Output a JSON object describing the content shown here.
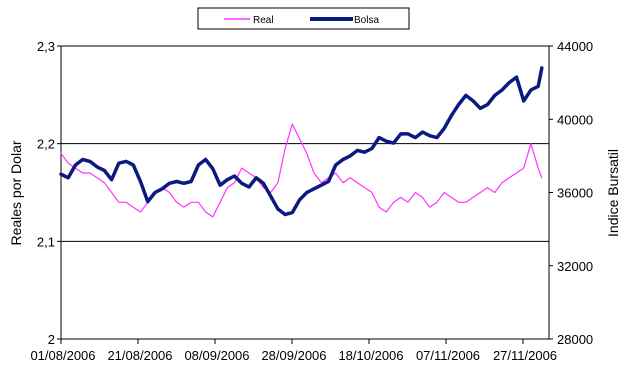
{
  "chart_data": {
    "type": "line",
    "title": "",
    "xlabel": "",
    "ylabel_left": "Reales por Dolar",
    "ylabel_right": "Indice Bursatil",
    "x_tick_labels": [
      "01/08/2006",
      "21/08/2006",
      "08/09/2006",
      "28/09/2006",
      "18/10/2006",
      "07/11/2006",
      "27/11/2006"
    ],
    "y_left": {
      "lim": [
        2.0,
        2.3
      ],
      "ticks": [
        "2",
        "2,1",
        "2,2",
        "2,3"
      ]
    },
    "y_right": {
      "lim": [
        28000,
        44000
      ],
      "ticks": [
        "28000",
        "32000",
        "36000",
        "40000",
        "44000"
      ]
    },
    "grid": "horizontal major lines",
    "legend_position": "top-center",
    "x_range_days": [
      0,
      135
    ],
    "series": [
      {
        "name": "Real",
        "axis": "left",
        "color": "#ff33ff",
        "x": [
          0,
          2,
          4,
          6,
          8,
          10,
          12,
          14,
          16,
          18,
          20,
          22,
          24,
          26,
          28,
          30,
          32,
          34,
          36,
          38,
          40,
          42,
          44,
          46,
          48,
          50,
          52,
          54,
          56,
          58,
          60,
          62,
          64,
          66,
          68,
          70,
          72,
          74,
          76,
          78,
          80,
          82,
          84,
          86,
          88,
          90,
          92,
          94,
          96,
          98,
          100,
          102,
          104,
          106,
          108,
          110,
          112,
          114,
          116,
          118,
          120,
          122,
          124,
          126,
          128,
          130,
          132,
          133
        ],
        "values": [
          2.19,
          2.18,
          2.175,
          2.17,
          2.17,
          2.165,
          2.16,
          2.15,
          2.14,
          2.14,
          2.135,
          2.13,
          2.14,
          2.15,
          2.155,
          2.15,
          2.14,
          2.135,
          2.14,
          2.14,
          2.13,
          2.125,
          2.14,
          2.155,
          2.16,
          2.175,
          2.17,
          2.165,
          2.155,
          2.15,
          2.16,
          2.195,
          2.22,
          2.205,
          2.19,
          2.17,
          2.16,
          2.165,
          2.17,
          2.16,
          2.165,
          2.16,
          2.155,
          2.15,
          2.135,
          2.13,
          2.14,
          2.145,
          2.14,
          2.15,
          2.145,
          2.135,
          2.14,
          2.15,
          2.145,
          2.14,
          2.14,
          2.145,
          2.15,
          2.155,
          2.15,
          2.16,
          2.165,
          2.17,
          2.175,
          2.2,
          2.175,
          2.165
        ]
      },
      {
        "name": "Bolsa",
        "axis": "right",
        "color": "#0a1a80",
        "x": [
          0,
          2,
          4,
          6,
          8,
          10,
          12,
          14,
          16,
          18,
          20,
          22,
          24,
          26,
          28,
          30,
          32,
          34,
          36,
          38,
          40,
          42,
          44,
          46,
          48,
          50,
          52,
          54,
          56,
          58,
          60,
          62,
          64,
          66,
          68,
          70,
          72,
          74,
          76,
          78,
          80,
          82,
          84,
          86,
          88,
          90,
          92,
          94,
          96,
          98,
          100,
          102,
          104,
          106,
          108,
          110,
          112,
          114,
          116,
          118,
          120,
          122,
          124,
          126,
          128,
          130,
          132,
          133
        ],
        "values": [
          37000,
          36800,
          37500,
          37800,
          37700,
          37400,
          37200,
          36700,
          37600,
          37700,
          37500,
          36600,
          35500,
          36000,
          36200,
          36500,
          36600,
          36500,
          36600,
          37500,
          37800,
          37300,
          36400,
          36700,
          36900,
          36500,
          36300,
          36800,
          36500,
          35800,
          35100,
          34800,
          34900,
          35600,
          36000,
          36200,
          36400,
          36600,
          37500,
          37800,
          38000,
          38300,
          38200,
          38400,
          39000,
          38800,
          38700,
          39200,
          39200,
          39000,
          39300,
          39100,
          39000,
          39500,
          40200,
          40800,
          41300,
          41000,
          40600,
          40800,
          41300,
          41600,
          42000,
          42300,
          41000,
          41600,
          41800,
          42800
        ]
      }
    ]
  }
}
